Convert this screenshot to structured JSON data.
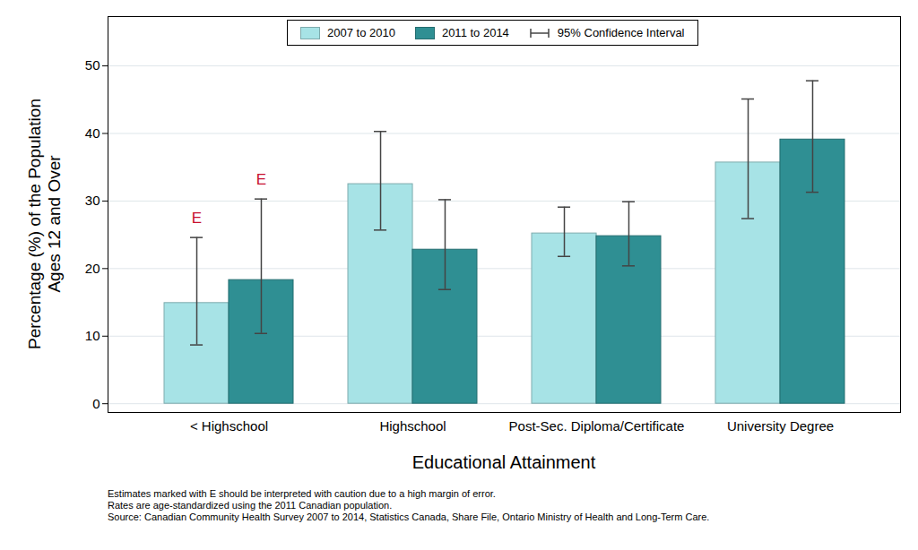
{
  "chart_data": {
    "type": "bar",
    "x_label": "Educational Attainment",
    "y_label": [
      "Percentage (%) of the Population",
      "Ages 12 and Over"
    ],
    "categories": [
      "< Highschool",
      "Highschool",
      "Post-Sec. Diploma/Certificate",
      "University Degree"
    ],
    "series": [
      {
        "name": "2007 to 2010",
        "color": "#a7e3e6",
        "values": [
          14.9,
          32.5,
          25.2,
          35.7
        ],
        "ci_low": [
          8.7,
          25.7,
          21.8,
          27.4
        ],
        "ci_high": [
          24.6,
          40.3,
          29.1,
          45.1
        ],
        "flags": [
          "E",
          null,
          null,
          null
        ]
      },
      {
        "name": "2011 to 2014",
        "color": "#2f8f93",
        "values": [
          18.3,
          22.8,
          24.8,
          39.1
        ],
        "ci_low": [
          10.4,
          16.9,
          20.4,
          31.3
        ],
        "ci_high": [
          30.3,
          30.2,
          29.9,
          47.8
        ],
        "flags": [
          "E",
          null,
          null,
          null
        ]
      }
    ],
    "error_bar_label": "95% Confidence Interval",
    "ylim": [
      -1.3,
      57.3
    ],
    "yticks": [
      0,
      10,
      20,
      30,
      40,
      50
    ],
    "grid": true,
    "legend": "top",
    "notes": [
      "Estimates marked with E should be interpreted with caution due to a high margin of error.",
      "Rates are age-standardized using the 2011 Canadian population.",
      "Source: Canadian Community Health Survey 2007 to 2014, Statistics Canada, Share File, Ontario Ministry of Health and Long-Term Care."
    ]
  }
}
